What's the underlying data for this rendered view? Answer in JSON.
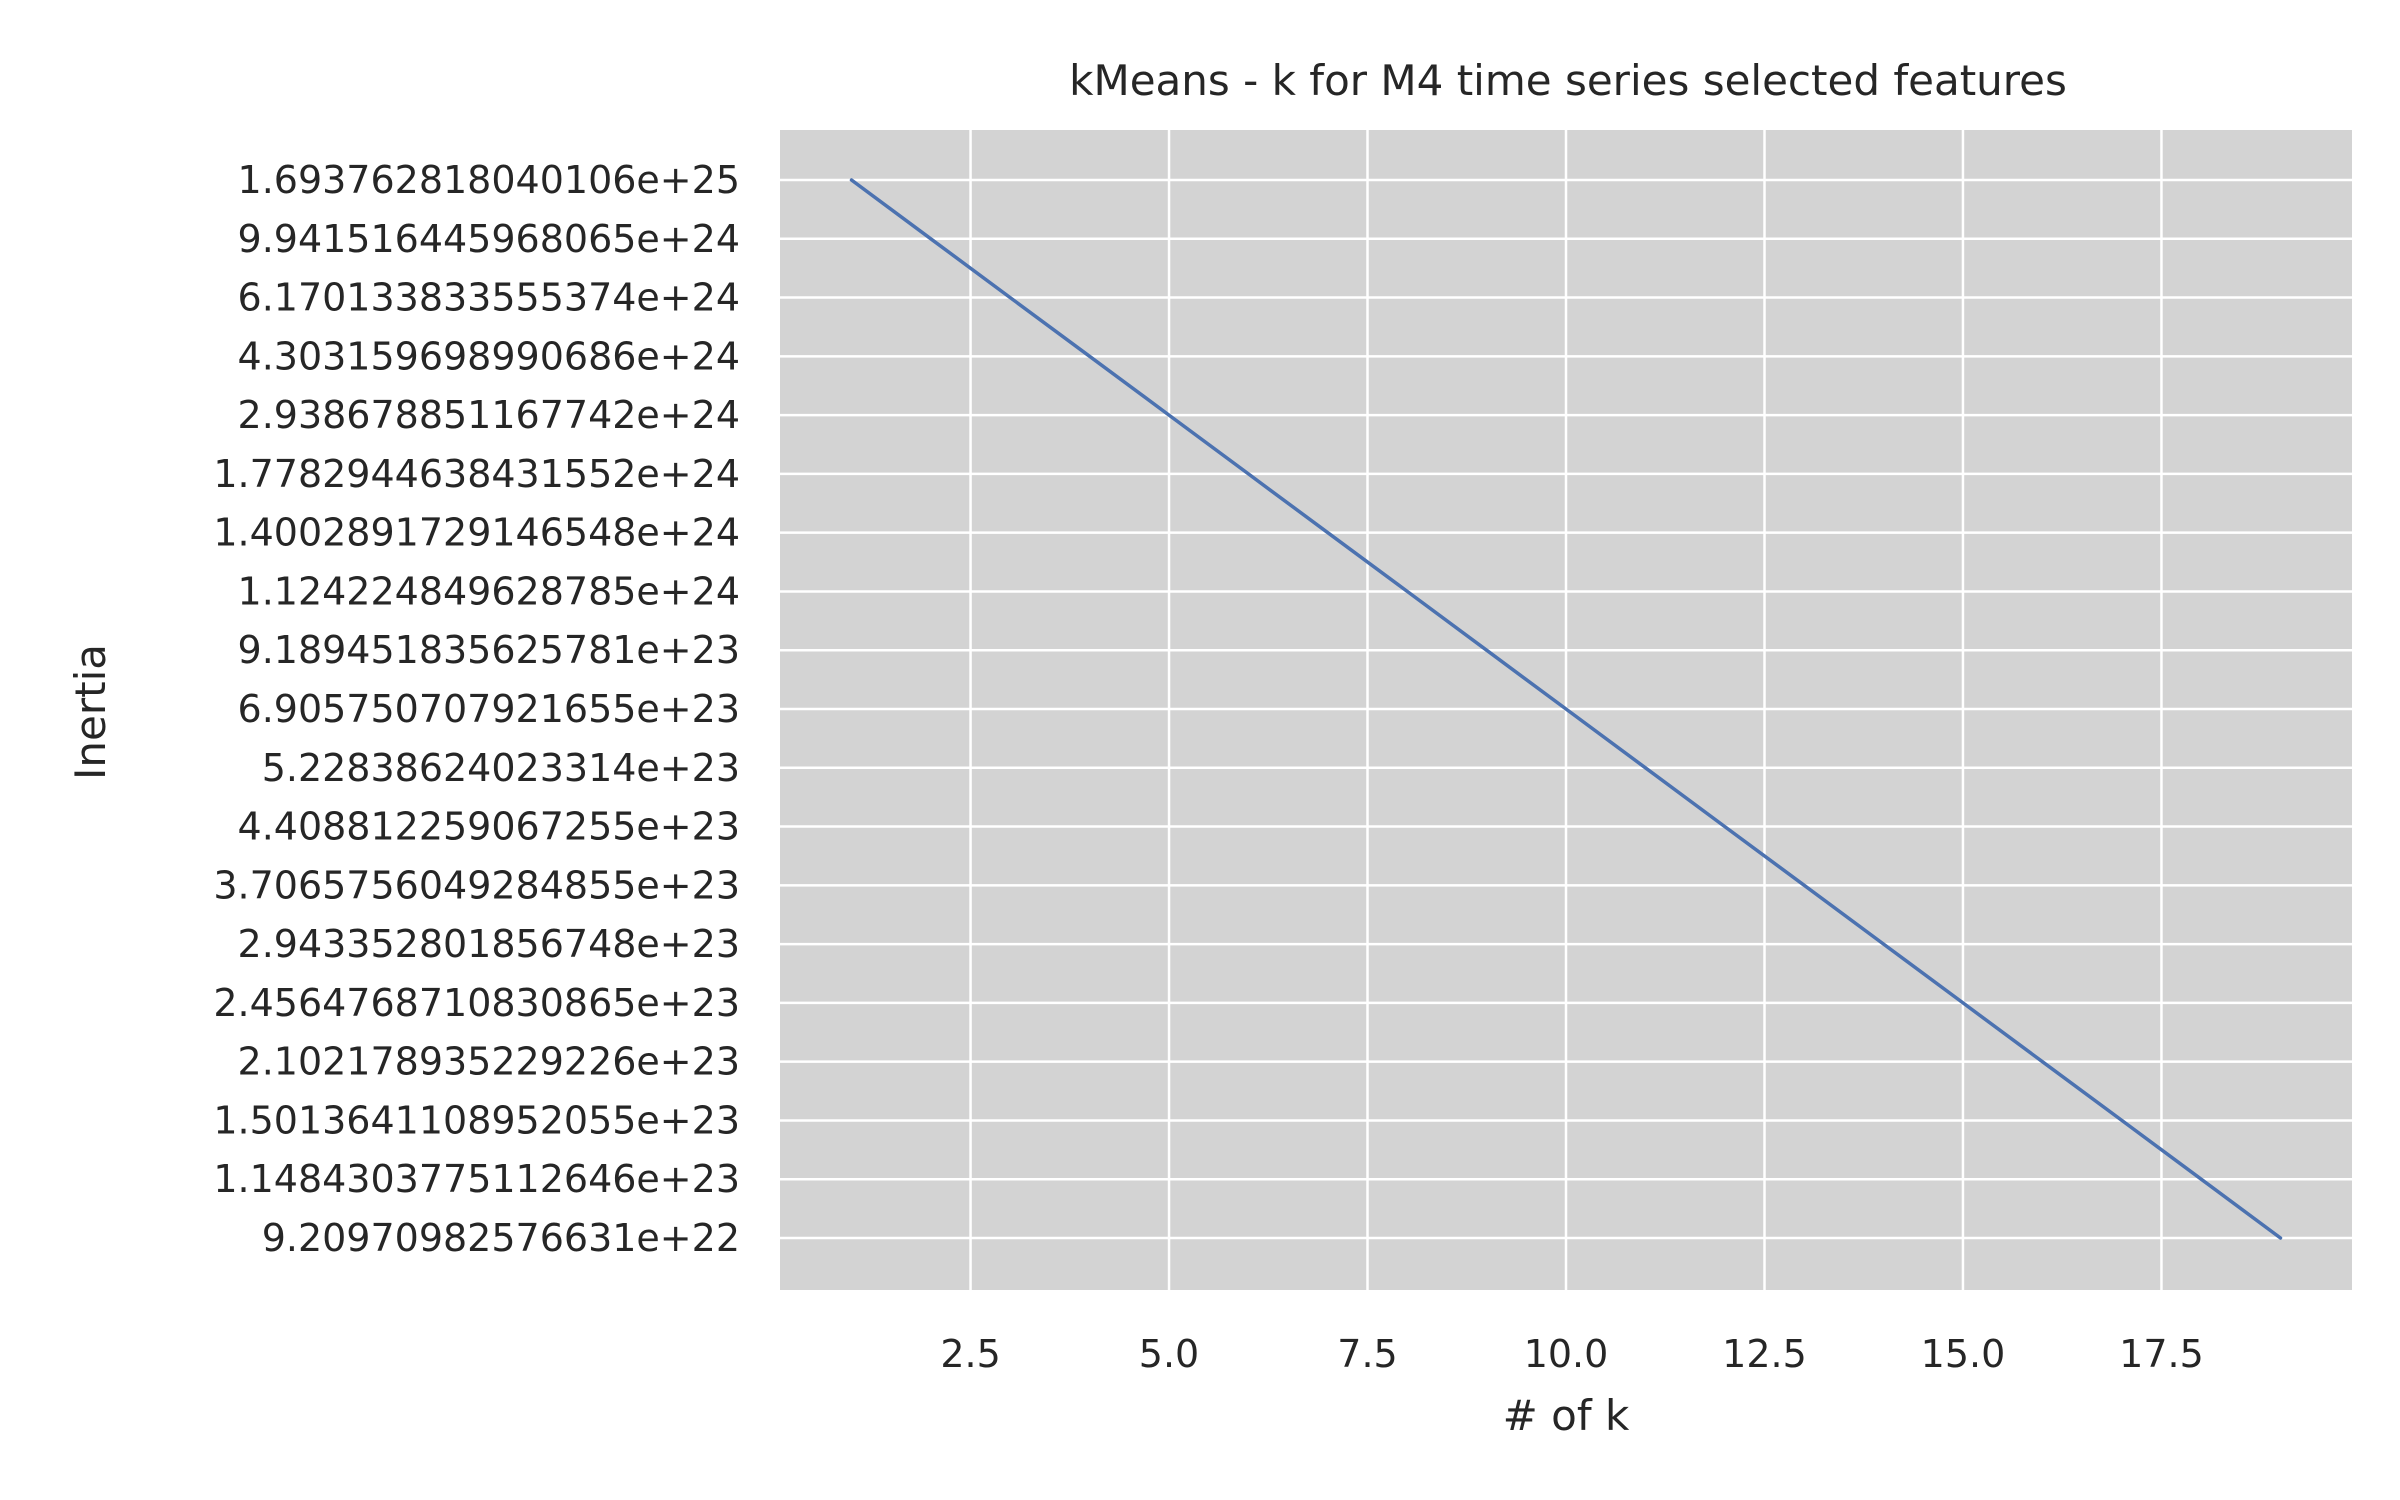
{
  "chart_data": {
    "type": "line",
    "title": "kMeans - k for M4 time series selected features",
    "xlabel": "# of k",
    "ylabel": "Inertia",
    "xlim": [
      0.1,
      19.9
    ],
    "x_ticks": [
      2.5,
      5.0,
      7.5,
      10.0,
      12.5,
      15.0,
      17.5
    ],
    "x_tick_labels": [
      "2.5",
      "5.0",
      "7.5",
      "10.0",
      "12.5",
      "15.0",
      "17.5"
    ],
    "y_axis_scale": "categorical (one tick per inertia value)",
    "y_tick_labels": [
      "1.693762818040106e+25",
      "9.941516445968065e+24",
      "6.170133833555374e+24",
      "4.303159698990686e+24",
      "2.938678851167742e+24",
      "1.7782944638431552e+24",
      "1.4002891729146548e+24",
      "1.124224849628785e+24",
      "9.189451835625781e+23",
      "6.905750707921655e+23",
      "5.22838624023314e+23",
      "4.408812259067255e+23",
      "3.7065756049284855e+23",
      "2.943352801856748e+23",
      "2.4564768710830865e+23",
      "2.102178935229226e+23",
      "1.5013641108952055e+23",
      "1.1484303775112646e+23",
      "9.20970982576631e+22"
    ],
    "series": [
      {
        "x": [
          1,
          2,
          3,
          4,
          5,
          6,
          7,
          8,
          9,
          10,
          11,
          12,
          13,
          14,
          15,
          16,
          17,
          18,
          19
        ],
        "y": [
          "1.693762818040106e+25",
          "9.941516445968065e+24",
          "6.170133833555374e+24",
          "4.303159698990686e+24",
          "2.938678851167742e+24",
          "1.7782944638431552e+24",
          "1.4002891729146548e+24",
          "1.124224849628785e+24",
          "9.189451835625781e+23",
          "6.905750707921655e+23",
          "5.22838624023314e+23",
          "4.408812259067255e+23",
          "3.7065756049284855e+23",
          "2.943352801856748e+23",
          "2.4564768710830865e+23",
          "2.102178935229226e+23",
          "1.5013641108952055e+23",
          "1.1484303775112646e+23",
          "9.20970982576631e+22"
        ],
        "color": "#4c72b0"
      }
    ],
    "grid": true,
    "plot_background": "#d3d3d3",
    "grid_color": "#ffffff"
  }
}
